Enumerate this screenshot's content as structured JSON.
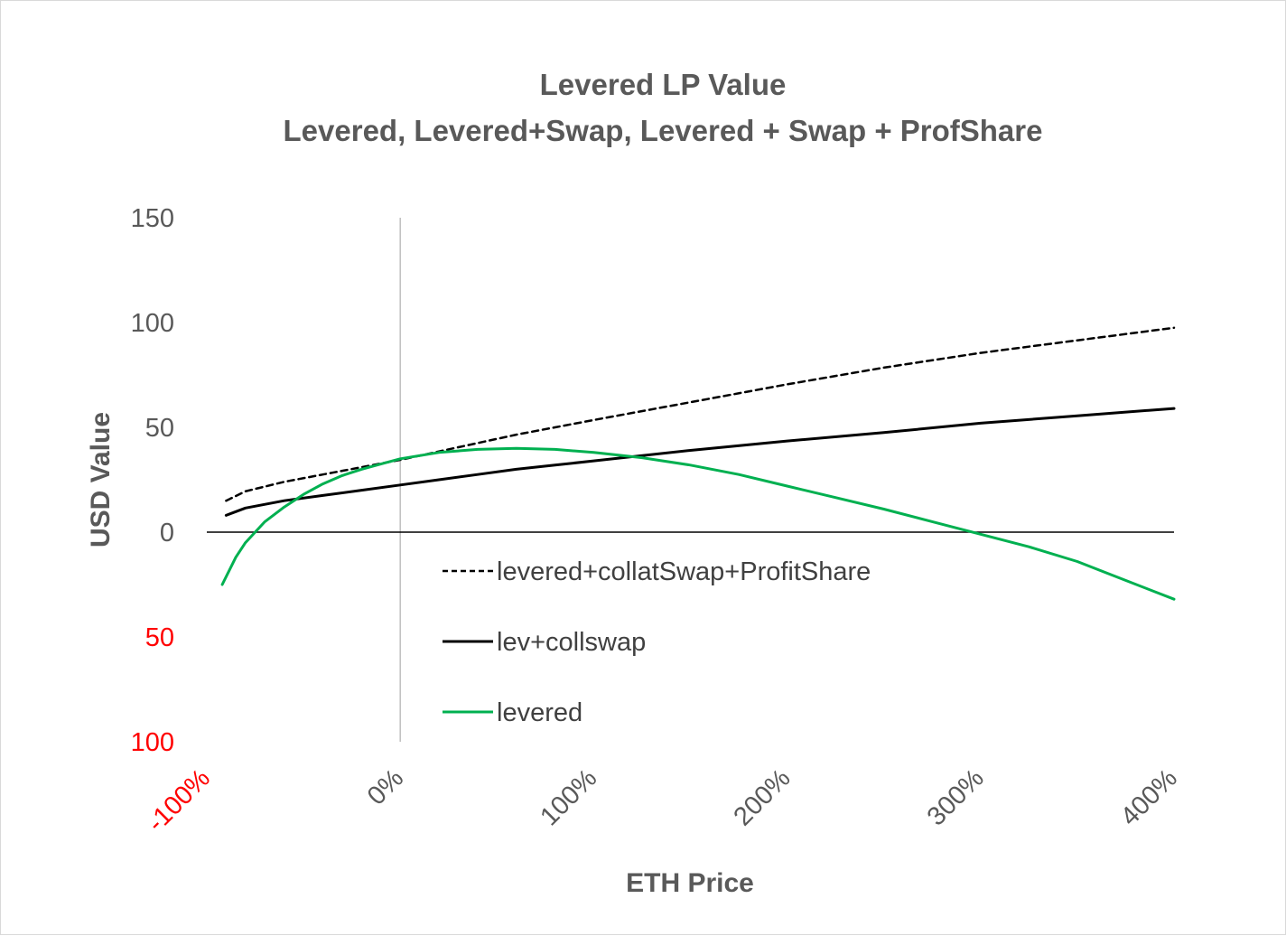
{
  "chart_data": {
    "type": "line",
    "title": "Levered LP Value",
    "subtitle": "Levered, Levered+Swap, Levered + Swap + ProfShare",
    "xlabel": "ETH Price",
    "ylabel": "USD Value",
    "xlim": [
      -1.0,
      4.0
    ],
    "ylim": [
      -100,
      150
    ],
    "x_ticks": [
      {
        "value": -1.0,
        "label": "-100%",
        "color": "#ff0000"
      },
      {
        "value": 0.0,
        "label": "0%",
        "color": "#595959"
      },
      {
        "value": 1.0,
        "label": "100%",
        "color": "#595959"
      },
      {
        "value": 2.0,
        "label": "200%",
        "color": "#595959"
      },
      {
        "value": 3.0,
        "label": "300%",
        "color": "#595959"
      },
      {
        "value": 4.0,
        "label": "400%",
        "color": "#595959"
      }
    ],
    "y_ticks": [
      {
        "value": 150,
        "label": "150",
        "color": "#595959"
      },
      {
        "value": 100,
        "label": "100",
        "color": "#595959"
      },
      {
        "value": 50,
        "label": "50",
        "color": "#595959"
      },
      {
        "value": 0,
        "label": "0",
        "color": "#595959"
      },
      {
        "value": -50,
        "label": "50",
        "color": "#ff0000"
      },
      {
        "value": -100,
        "label": "100",
        "color": "#ff0000"
      }
    ],
    "legend_position": "center",
    "series": [
      {
        "name": "levered+collatSwap+ProfitShare",
        "color": "#000000",
        "style": "dashed",
        "x": [
          -0.9,
          -0.8,
          -0.6,
          -0.4,
          -0.2,
          0.0,
          0.2,
          0.4,
          0.6,
          0.8,
          1.0,
          1.5,
          2.0,
          2.5,
          3.0,
          3.5,
          4.0
        ],
        "y": [
          15,
          19.5,
          24,
          27.5,
          31,
          34.5,
          38.5,
          42.5,
          46.5,
          50,
          53.5,
          62,
          70.5,
          78.5,
          85.5,
          91.5,
          97.5
        ]
      },
      {
        "name": "lev+collswap",
        "color": "#000000",
        "style": "solid",
        "x": [
          -0.9,
          -0.8,
          -0.6,
          -0.4,
          -0.2,
          0.0,
          0.2,
          0.4,
          0.6,
          0.8,
          1.0,
          1.5,
          2.0,
          2.5,
          3.0,
          3.5,
          4.0
        ],
        "y": [
          8,
          11.5,
          15,
          17.5,
          20,
          22.5,
          25,
          27.5,
          30,
          32,
          34,
          39,
          43.5,
          47.5,
          52,
          55.5,
          59
        ]
      },
      {
        "name": "levered",
        "color": "#00b050",
        "style": "solid",
        "x": [
          -0.92,
          -0.85,
          -0.8,
          -0.7,
          -0.6,
          -0.5,
          -0.4,
          -0.3,
          -0.2,
          -0.1,
          0.0,
          0.2,
          0.4,
          0.6,
          0.8,
          1.0,
          1.25,
          1.5,
          1.75,
          2.0,
          2.25,
          2.5,
          2.75,
          3.0,
          3.25,
          3.5,
          3.75,
          4.0
        ],
        "y": [
          -25,
          -12,
          -5,
          5,
          12,
          18,
          23,
          27,
          30,
          32.5,
          35,
          38,
          39.5,
          40,
          39.5,
          38,
          35.5,
          32,
          27.5,
          22,
          16.5,
          11,
          5,
          -1,
          -7,
          -14,
          -23,
          -32
        ]
      }
    ]
  }
}
